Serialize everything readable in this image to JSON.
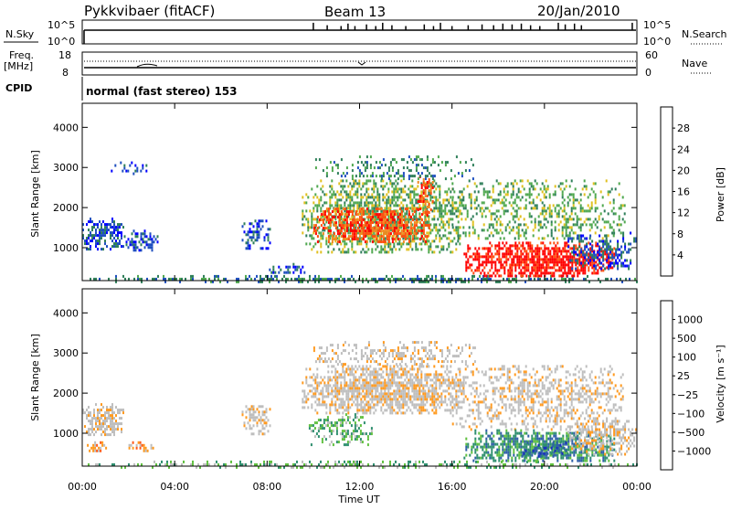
{
  "header": {
    "station": "Pykkvibaer (fitACF)",
    "beam": "Beam 13",
    "date": "20/Jan/2010"
  },
  "nsky": {
    "label": "N.Sky",
    "tick_top": "10^5",
    "tick_bottom": "10^0",
    "right_label": "N.Search",
    "right_tick_top": "10^5",
    "right_tick_bottom": "10^0",
    "spikes": [
      {
        "t": 10.0,
        "v": 0.9
      },
      {
        "t": 10.6,
        "v": 0.6
      },
      {
        "t": 11.2,
        "v": 0.5
      },
      {
        "t": 11.5,
        "v": 0.8
      },
      {
        "t": 11.8,
        "v": 0.5
      },
      {
        "t": 12.3,
        "v": 0.7
      },
      {
        "t": 12.7,
        "v": 0.5
      },
      {
        "t": 13.0,
        "v": 0.9
      },
      {
        "t": 13.4,
        "v": 0.6
      },
      {
        "t": 14.0,
        "v": 0.5
      },
      {
        "t": 14.8,
        "v": 0.7
      },
      {
        "t": 15.2,
        "v": 0.5
      },
      {
        "t": 15.5,
        "v": 0.9
      },
      {
        "t": 16.0,
        "v": 0.5
      },
      {
        "t": 16.7,
        "v": 0.6
      },
      {
        "t": 17.3,
        "v": 0.7
      },
      {
        "t": 17.8,
        "v": 0.6
      },
      {
        "t": 18.2,
        "v": 0.8
      },
      {
        "t": 18.6,
        "v": 0.7
      },
      {
        "t": 19.0,
        "v": 0.8
      },
      {
        "t": 19.4,
        "v": 0.6
      },
      {
        "t": 19.8,
        "v": 0.5
      },
      {
        "t": 20.6,
        "v": 0.9
      },
      {
        "t": 20.9,
        "v": 0.7
      },
      {
        "t": 21.3,
        "v": 0.8
      },
      {
        "t": 21.6,
        "v": 0.6
      },
      {
        "t": 23.8,
        "v": 0.9
      }
    ]
  },
  "freq": {
    "label_top": "Freq.",
    "label_unit": "[MHz]",
    "tick_top": "18",
    "tick_bottom": "8",
    "right_label": "Nave",
    "right_tick_top": "60",
    "right_tick_bottom": "0"
  },
  "cpid": {
    "label": "CPID",
    "program": "normal (fast stereo) 153"
  },
  "power_panel": {
    "ylabel": "Slant Range [km]",
    "colorbar_label": "Power [dB]",
    "colorbar_ticks": [
      "28",
      "24",
      "20",
      "16",
      "12",
      "8",
      "4"
    ],
    "colorbar_colors": [
      "#0000ff",
      "#1f4fbf",
      "#2f7f5a",
      "#4fa84f",
      "#e0c020",
      "#f08a20",
      "#ff5010",
      "#ff0000"
    ]
  },
  "velocity_panel": {
    "ylabel": "Slant Range [km]",
    "colorbar_label": "Velocity [m s⁻¹]",
    "colorbar_ticks": [
      "1000",
      "500",
      "100",
      "25",
      "−25",
      "−100",
      "−500",
      "−1000"
    ],
    "colorbar_colors": [
      "#ff0000",
      "#ff5a1a",
      "#ff9a20",
      "#bebebe",
      "#bebebe",
      "#60c040",
      "#2f8f6f",
      "#2f5fa8",
      "#1a2fbf"
    ]
  },
  "chart_data": {
    "type": "heatmap",
    "xlabel": "Time UT",
    "x_ticks": [
      "00:00",
      "04:00",
      "08:00",
      "12:00",
      "16:00",
      "20:00",
      "00:00"
    ],
    "y_ticks": [
      "1000",
      "2000",
      "3000",
      "4000"
    ],
    "xlim_hours": [
      0,
      24
    ],
    "ylim_km": [
      180,
      4600
    ],
    "power_regions": [
      {
        "t0": 0.0,
        "t1": 24.0,
        "r0": 180,
        "r1": 320,
        "level": 2,
        "density": 0.55
      },
      {
        "t0": 0.0,
        "t1": 1.8,
        "r0": 950,
        "r1": 1750,
        "level": 1,
        "density": 0.6
      },
      {
        "t0": 1.8,
        "t1": 3.3,
        "r0": 950,
        "r1": 1450,
        "level": 1,
        "density": 0.5
      },
      {
        "t0": 1.0,
        "t1": 2.8,
        "r0": 2850,
        "r1": 3150,
        "level": 1,
        "density": 0.3
      },
      {
        "t0": 6.9,
        "t1": 8.1,
        "r0": 950,
        "r1": 1700,
        "level": 1,
        "density": 0.5
      },
      {
        "t0": 8.0,
        "t1": 10.0,
        "r0": 350,
        "r1": 620,
        "level": 1,
        "density": 0.45
      },
      {
        "t0": 9.5,
        "t1": 16.5,
        "r0": 900,
        "r1": 2700,
        "level": 3,
        "density": 0.6
      },
      {
        "t0": 10.0,
        "t1": 15.0,
        "r0": 1150,
        "r1": 2000,
        "level": 6,
        "density": 0.7
      },
      {
        "t0": 14.5,
        "t1": 15.2,
        "r0": 1800,
        "r1": 2800,
        "level": 6,
        "density": 0.55
      },
      {
        "t0": 10.0,
        "t1": 17.0,
        "r0": 2700,
        "r1": 3300,
        "level": 2,
        "density": 0.3
      },
      {
        "t0": 16.0,
        "t1": 23.5,
        "r0": 1200,
        "r1": 2700,
        "level": 3,
        "density": 0.35
      },
      {
        "t0": 16.5,
        "t1": 23.0,
        "r0": 300,
        "r1": 1150,
        "level": 7,
        "density": 0.75
      },
      {
        "t0": 21.0,
        "t1": 24.0,
        "r0": 500,
        "r1": 1400,
        "level": 1,
        "density": 0.5
      }
    ],
    "velocity_regions": [
      {
        "t0": 0.0,
        "t1": 24.0,
        "r0": 180,
        "r1": 320,
        "level": 5,
        "density": 0.4
      },
      {
        "t0": 0.0,
        "t1": 1.8,
        "r0": 950,
        "r1": 1750,
        "level": 3,
        "density": 0.65
      },
      {
        "t0": 0.2,
        "t1": 1.0,
        "r0": 550,
        "r1": 800,
        "level": 2,
        "density": 0.6
      },
      {
        "t0": 2.0,
        "t1": 3.2,
        "r0": 550,
        "r1": 800,
        "level": 2,
        "density": 0.5
      },
      {
        "t0": 6.9,
        "t1": 8.1,
        "r0": 950,
        "r1": 1700,
        "level": 3,
        "density": 0.5
      },
      {
        "t0": 9.5,
        "t1": 16.5,
        "r0": 1500,
        "r1": 2700,
        "level": 3,
        "density": 0.75
      },
      {
        "t0": 9.8,
        "t1": 12.5,
        "r0": 700,
        "r1": 1500,
        "level": 5,
        "density": 0.5
      },
      {
        "t0": 10.0,
        "t1": 17.0,
        "r0": 2700,
        "r1": 3300,
        "level": 3,
        "density": 0.35
      },
      {
        "t0": 16.0,
        "t1": 23.5,
        "r0": 1100,
        "r1": 2700,
        "level": 3,
        "density": 0.4
      },
      {
        "t0": 16.5,
        "t1": 23.0,
        "r0": 300,
        "r1": 1100,
        "level": 6,
        "density": 0.75
      },
      {
        "t0": 19.0,
        "t1": 21.0,
        "r0": 400,
        "r1": 800,
        "level": 7,
        "density": 0.5
      },
      {
        "t0": 21.0,
        "t1": 24.0,
        "r0": 500,
        "r1": 1400,
        "level": 3,
        "density": 0.5
      }
    ]
  }
}
